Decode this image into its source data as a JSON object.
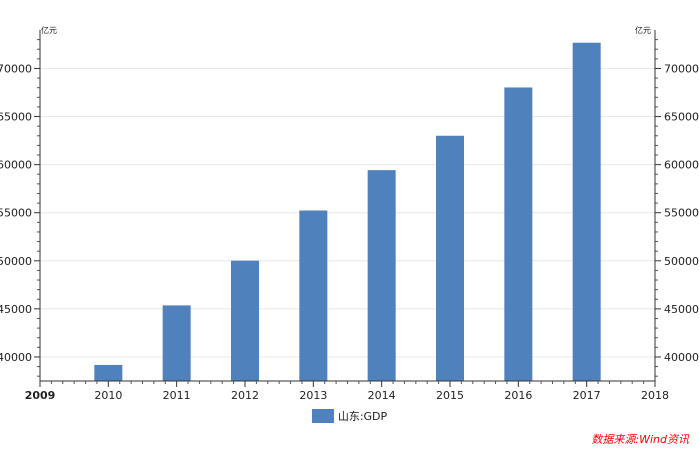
{
  "chart_data": {
    "type": "bar",
    "unit_left": "亿元",
    "unit_right": "亿元",
    "x_ticks": [
      "2009",
      "2010",
      "2011",
      "2012",
      "2013",
      "2014",
      "2015",
      "2016",
      "2017",
      "2018"
    ],
    "categories": [
      "2010",
      "2011",
      "2012",
      "2013",
      "2014",
      "2015",
      "2016",
      "2017"
    ],
    "series": [
      {
        "name": "山东:GDP",
        "values": [
          39170,
          45362,
          50013,
          55230,
          59427,
          63002,
          68024,
          72678
        ]
      }
    ],
    "ylim": [
      37500,
      74000
    ],
    "y_ticks": [
      40000,
      45000,
      50000,
      55000,
      60000,
      65000,
      70000
    ],
    "grid": true,
    "legend_position": "bottom-center",
    "bar_color": "#4f81bd"
  },
  "source": {
    "text": "数据来源:Wind资讯",
    "color": "#ff0000"
  }
}
